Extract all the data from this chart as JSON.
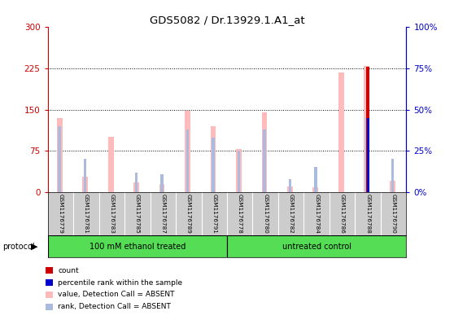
{
  "title": "GDS5082 / Dr.13929.1.A1_at",
  "samples": [
    "GSM1176779",
    "GSM1176781",
    "GSM1176783",
    "GSM1176785",
    "GSM1176787",
    "GSM1176789",
    "GSM1176791",
    "GSM1176778",
    "GSM1176780",
    "GSM1176782",
    "GSM1176784",
    "GSM1176786",
    "GSM1176788",
    "GSM1176790"
  ],
  "pink_values": [
    135,
    28,
    100,
    17,
    15,
    148,
    120,
    78,
    145,
    10,
    8,
    218,
    230,
    20
  ],
  "blue_rank_values": [
    40,
    20,
    0,
    12,
    11,
    38,
    33,
    25,
    38,
    8,
    15,
    0,
    45,
    20
  ],
  "red_count_values": [
    0,
    0,
    0,
    0,
    0,
    0,
    0,
    0,
    0,
    0,
    0,
    0,
    228,
    0
  ],
  "blue_sq_values": [
    0,
    0,
    0,
    0,
    0,
    0,
    0,
    0,
    0,
    0,
    0,
    0,
    45,
    0
  ],
  "group1_label": "100 mM ethanol treated",
  "group1_count": 7,
  "group2_label": "untreated control",
  "group2_count": 7,
  "protocol_label": "protocol",
  "ylim_left": [
    0,
    300
  ],
  "ylim_right": [
    0,
    100
  ],
  "yticks_left": [
    0,
    75,
    150,
    225,
    300
  ],
  "yticks_right": [
    0,
    25,
    50,
    75,
    100
  ],
  "pink_color": "#ffbbbb",
  "blue_color": "#aabbdd",
  "red_color": "#cc0000",
  "dark_blue_color": "#0000cc",
  "green_color": "#55dd55",
  "bg_color": "#cccccc",
  "left_axis_color": "#cc0000",
  "right_axis_color": "#0000cc",
  "legend_items": [
    {
      "color": "#cc0000",
      "label": "count"
    },
    {
      "color": "#0000cc",
      "label": "percentile rank within the sample"
    },
    {
      "color": "#ffbbbb",
      "label": "value, Detection Call = ABSENT"
    },
    {
      "color": "#aabbdd",
      "label": "rank, Detection Call = ABSENT"
    }
  ]
}
